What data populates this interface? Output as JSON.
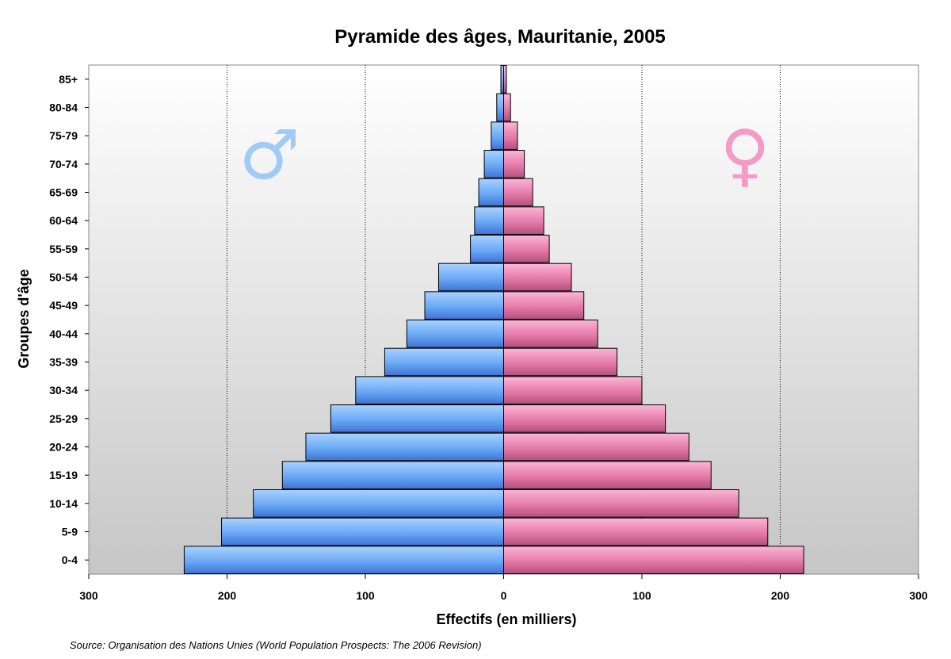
{
  "chart_data": {
    "type": "bar",
    "orientation": "horizontal",
    "layout": "population-pyramid",
    "title": "Pyramide des âges, Mauritanie, 2005",
    "xlabel": "Effectifs (en milliers)",
    "ylabel": "Groupes d'âge",
    "xlim": [
      -300,
      300
    ],
    "x_ticks": [
      -300,
      -200,
      -100,
      0,
      100,
      200,
      300
    ],
    "x_tick_labels": [
      "300",
      "200",
      "100",
      "0",
      "100",
      "200",
      "300"
    ],
    "grid": "vertical dotted",
    "categories": [
      "0-4",
      "5-9",
      "10-14",
      "15-19",
      "20-24",
      "25-29",
      "30-34",
      "35-39",
      "40-44",
      "45-49",
      "50-54",
      "55-59",
      "60-64",
      "65-69",
      "70-74",
      "75-79",
      "80-84",
      "85+"
    ],
    "series": [
      {
        "symbol": "♂",
        "color": "#5fa0f0",
        "values": [
          231,
          204,
          181,
          160,
          143,
          125,
          107,
          86,
          70,
          57,
          47,
          24,
          21,
          18,
          14,
          9,
          5,
          2
        ]
      },
      {
        "symbol": "♀",
        "color": "#e0709f",
        "values": [
          217,
          191,
          170,
          150,
          134,
          117,
          100,
          82,
          68,
          58,
          49,
          33,
          29,
          21,
          15,
          10,
          5,
          2
        ]
      }
    ],
    "source": "Source: Organisation des Nations Unies (World Population Prospects: The 2006 Revision)"
  }
}
